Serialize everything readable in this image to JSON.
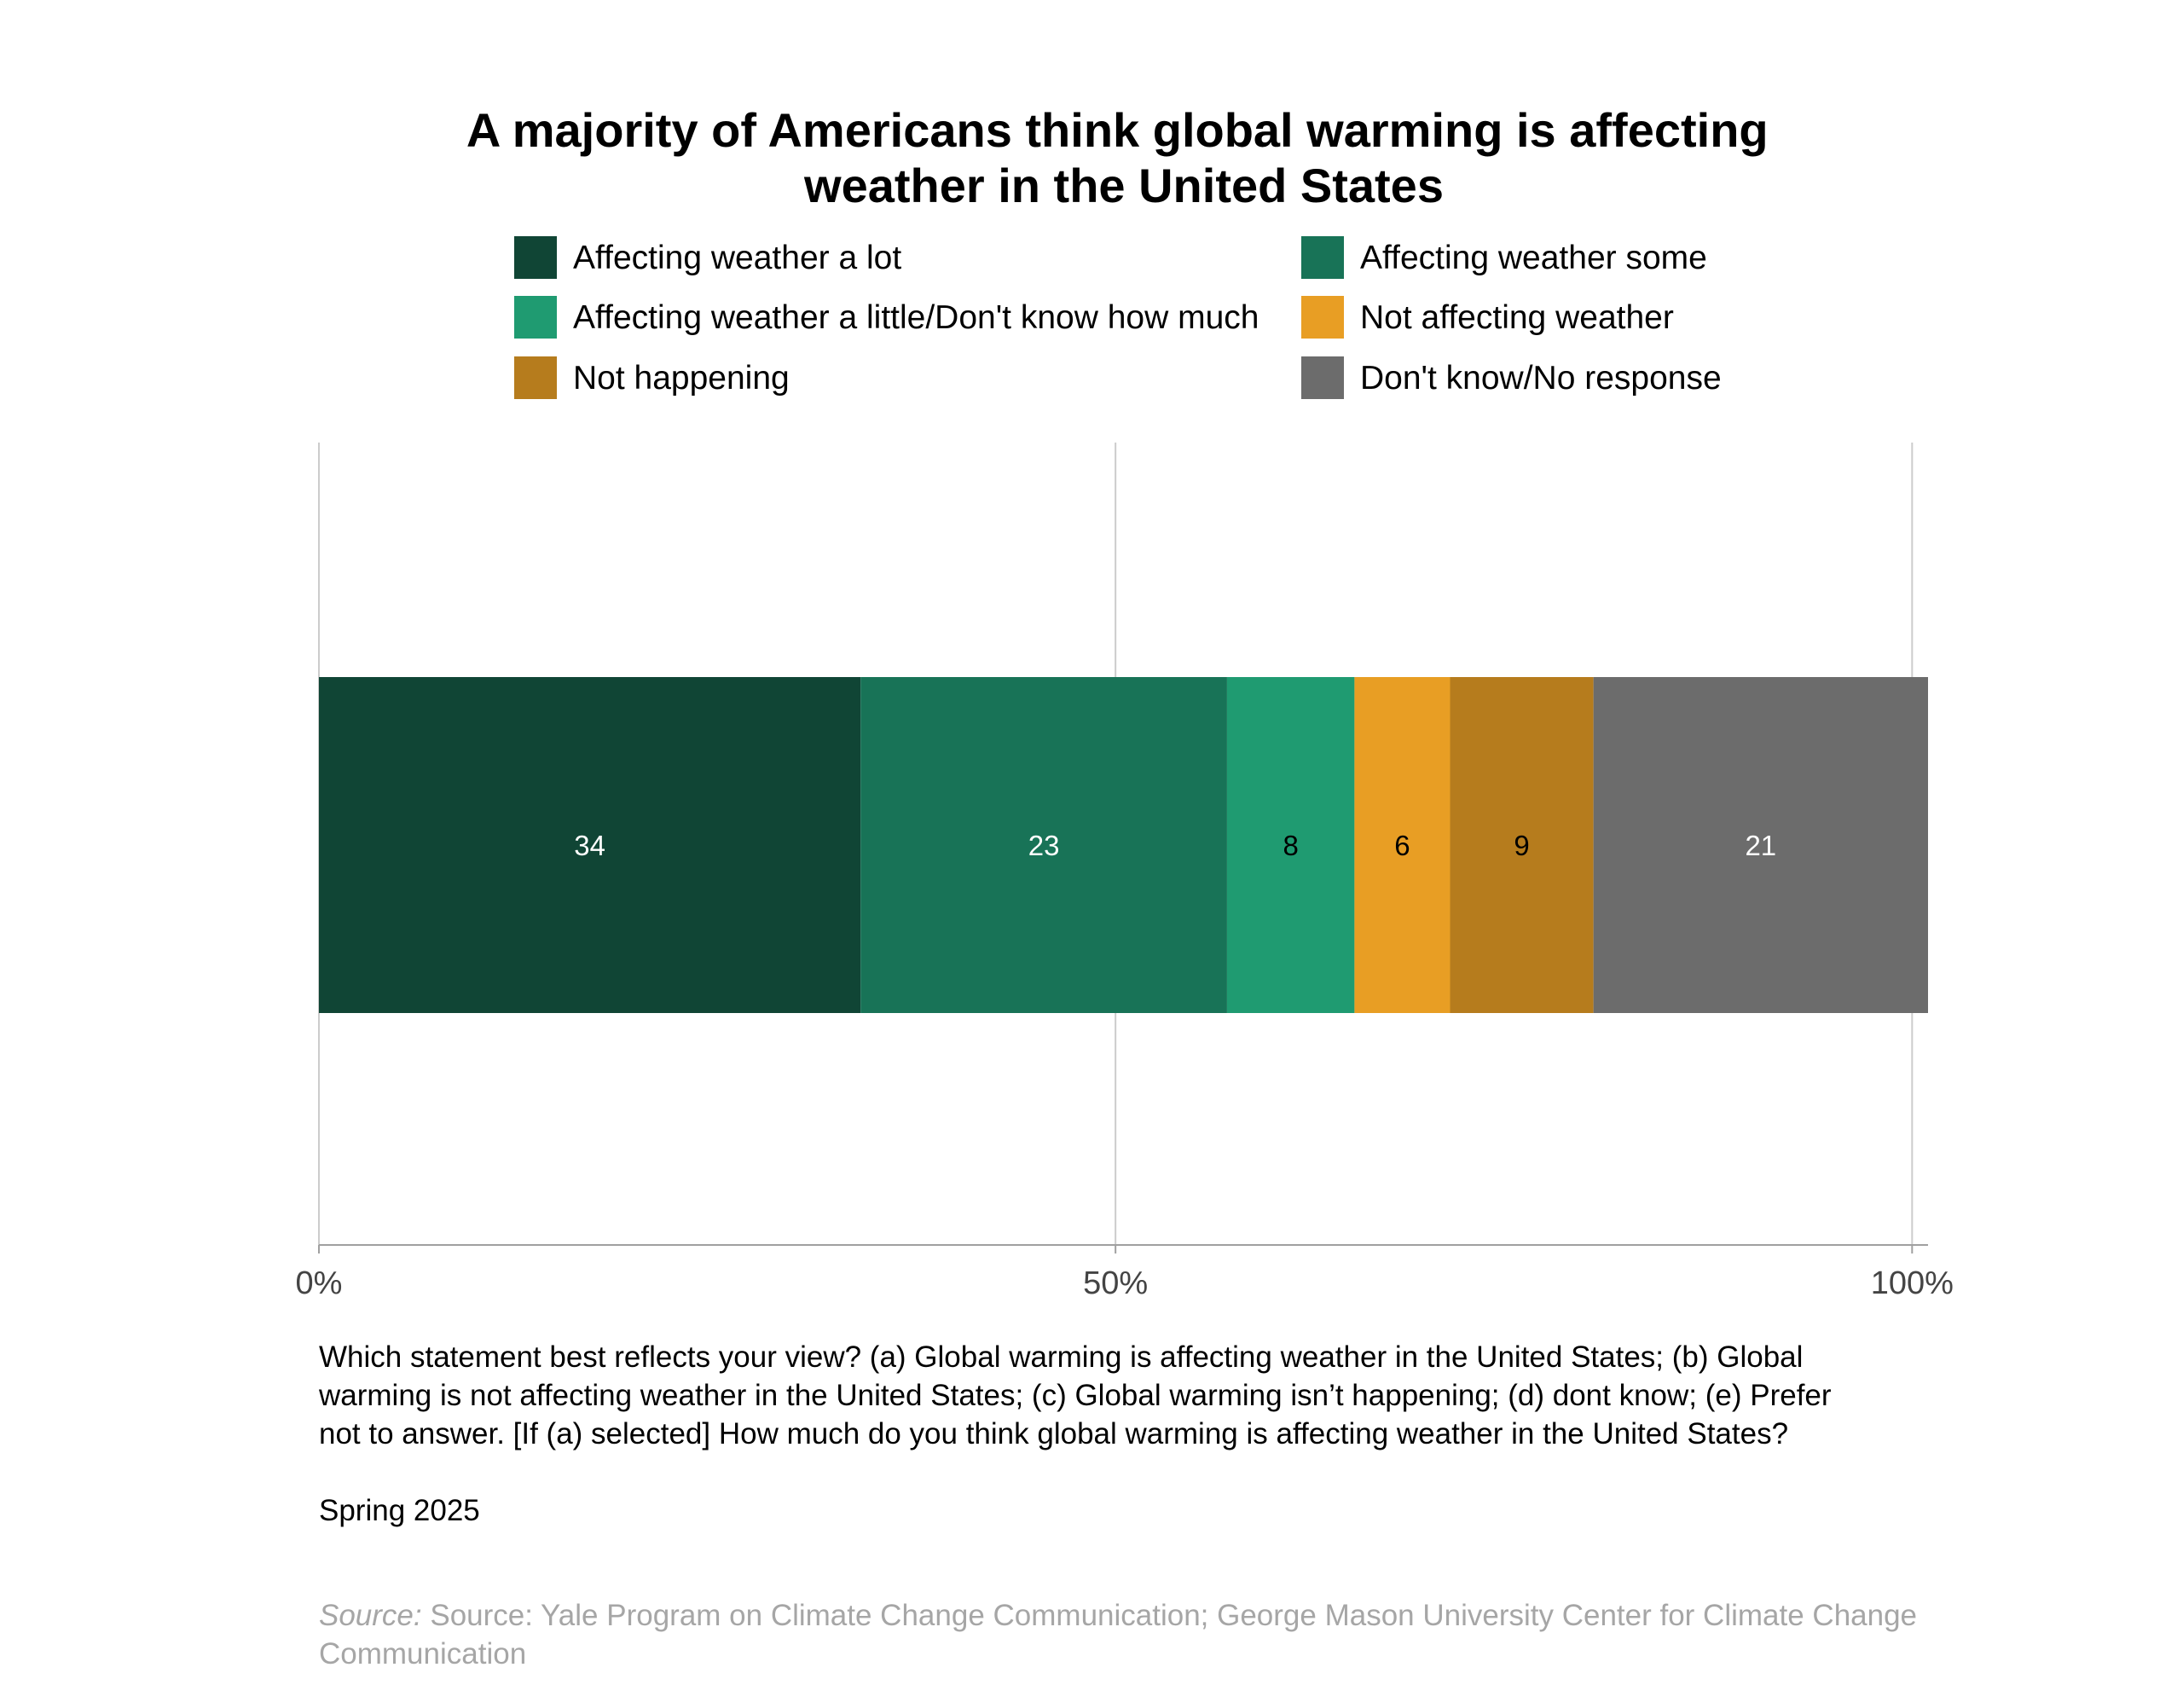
{
  "chart_data": {
    "type": "bar",
    "orientation": "horizontal",
    "stacked": true,
    "title": "A majority of Americans think global warming is affecting weather in the United States",
    "title_lines": [
      "A majority of Americans think global warming is affecting",
      "weather in the United States"
    ],
    "categories": [
      ""
    ],
    "series": [
      {
        "name": "Affecting weather a lot",
        "values": [
          34
        ],
        "color": "#104535",
        "label_color": "#ffffff"
      },
      {
        "name": "Affecting weather some",
        "values": [
          23
        ],
        "color": "#187357",
        "label_color": "#ffffff"
      },
      {
        "name": "Affecting weather a little/Don't know how much",
        "values": [
          8
        ],
        "color": "#1f9b71",
        "label_color": "#000000"
      },
      {
        "name": "Not affecting weather",
        "values": [
          6
        ],
        "color": "#e89e24",
        "label_color": "#000000"
      },
      {
        "name": "Not happening",
        "values": [
          9
        ],
        "color": "#b67c1d",
        "label_color": "#000000"
      },
      {
        "name": "Don't know/No response",
        "values": [
          21
        ],
        "color": "#6c6c6c",
        "label_color": "#ffffff"
      }
    ],
    "xlim": [
      0,
      101
    ],
    "x_ticks": [
      0,
      50,
      100
    ],
    "x_tick_labels": [
      "0%",
      "50%",
      "100%"
    ],
    "grid": "vertical",
    "legend_position": "top",
    "note_lines": [
      "Which statement best reflects your view? (a) Global warming is affecting weather in the United States; (b) Global",
      "warming is not affecting weather in the United States; (c) Global warming isn’t happening; (d) dont know; (e) Prefer",
      "not to answer. [If (a) selected] How much do you think global warming is affecting weather in the United States?"
    ],
    "period": "Spring 2025",
    "source_prefix": "Source:",
    "source_lines": [
      " Source: Yale Program on Climate Change Communication; George Mason University Center for Climate Change",
      "Communication"
    ]
  }
}
